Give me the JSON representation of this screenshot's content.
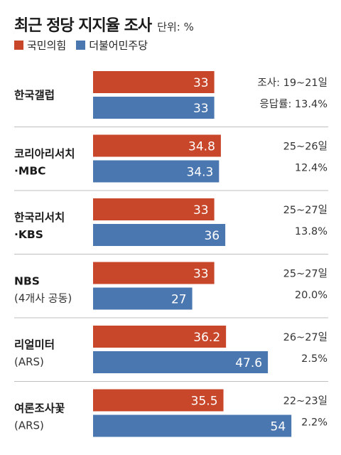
{
  "header": {
    "title": "최근 정당 지지율 조사",
    "unit": "단위: %"
  },
  "colors": {
    "ppp": "#c8472a",
    "dpk": "#4b77b1",
    "divider": "#bfbfbf"
  },
  "chart_data": {
    "type": "bar",
    "orientation": "horizontal",
    "title": "최근 정당 지지율 조사",
    "unit": "단위: %",
    "legend": "top-left",
    "series_names": [
      "국민의힘",
      "더불어민주당"
    ],
    "rows": [
      {
        "label": "한국갤럽",
        "sub": "",
        "ppp": 33,
        "dpk": 33,
        "info1": "조사: 19~21일",
        "info2": "응답률: 13.4%"
      },
      {
        "label": "코리아리서치",
        "sub": "·MBC",
        "ppp": 34.8,
        "dpk": 34.3,
        "info1": "25~26일",
        "info2": "12.4%"
      },
      {
        "label": "한국리서치",
        "sub": "·KBS",
        "ppp": 33,
        "dpk": 36,
        "info1": "25~27일",
        "info2": "13.8%"
      },
      {
        "label": "NBS",
        "sub": "(4개사 공동)",
        "ppp": 33,
        "dpk": 27,
        "info1": "25~27일",
        "info2": "20.0%"
      },
      {
        "label": "리얼미터",
        "sub": "(ARS)",
        "ppp": 36.2,
        "dpk": 47.6,
        "info1": "26~27일",
        "info2": "2.5%"
      },
      {
        "label": "여론조사꽃",
        "sub": "(ARS)",
        "ppp": 35.5,
        "dpk": 54,
        "info1": "22~23일",
        "info2": "2.2%"
      }
    ]
  }
}
